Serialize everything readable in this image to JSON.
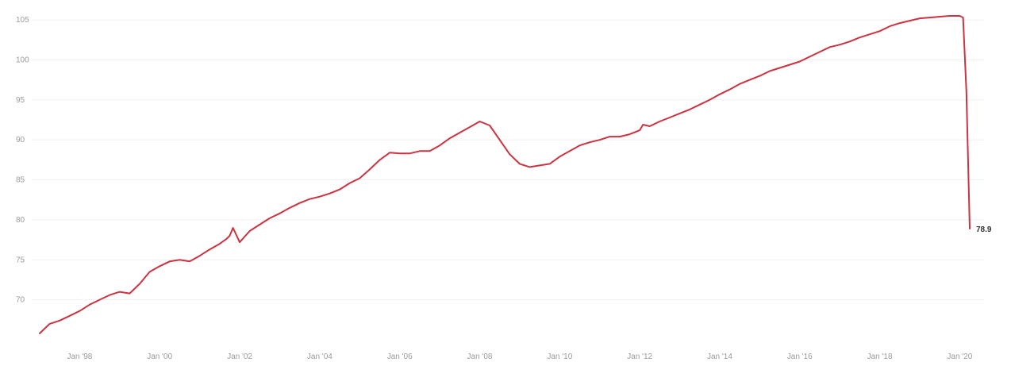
{
  "chart_data": {
    "type": "line",
    "title": "",
    "xlabel": "",
    "ylabel": "",
    "ylim": [
      65,
      106
    ],
    "xlim": [
      "1997-01",
      "2020-04"
    ],
    "grid": true,
    "y_ticks": [
      70,
      75,
      80,
      85,
      90,
      95,
      100,
      105
    ],
    "x_ticks": [
      {
        "x": "1998-01",
        "label": "Jan '98"
      },
      {
        "x": "2000-01",
        "label": "Jan '00"
      },
      {
        "x": "2002-01",
        "label": "Jan '02"
      },
      {
        "x": "2004-01",
        "label": "Jan '04"
      },
      {
        "x": "2006-01",
        "label": "Jan '06"
      },
      {
        "x": "2008-01",
        "label": "Jan '08"
      },
      {
        "x": "2010-01",
        "label": "Jan '10"
      },
      {
        "x": "2012-01",
        "label": "Jan '12"
      },
      {
        "x": "2014-01",
        "label": "Jan '14"
      },
      {
        "x": "2016-01",
        "label": "Jan '16"
      },
      {
        "x": "2018-01",
        "label": "Jan '18"
      },
      {
        "x": "2020-01",
        "label": "Jan '20"
      }
    ],
    "end_label": "78.9",
    "series": [
      {
        "color": "#cc3340",
        "x": [
          "1997-01",
          "1997-04",
          "1997-07",
          "1997-10",
          "1998-01",
          "1998-04",
          "1998-07",
          "1998-10",
          "1999-01",
          "1999-04",
          "1999-07",
          "1999-10",
          "2000-01",
          "2000-04",
          "2000-07",
          "2000-10",
          "2001-01",
          "2001-04",
          "2001-07",
          "2001-09",
          "2001-10",
          "2001-11",
          "2002-01",
          "2002-04",
          "2002-07",
          "2002-10",
          "2003-01",
          "2003-04",
          "2003-07",
          "2003-10",
          "2004-01",
          "2004-04",
          "2004-07",
          "2004-10",
          "2005-01",
          "2005-04",
          "2005-07",
          "2005-10",
          "2006-01",
          "2006-04",
          "2006-07",
          "2006-10",
          "2007-01",
          "2007-04",
          "2007-07",
          "2007-10",
          "2008-01",
          "2008-04",
          "2008-07",
          "2008-10",
          "2009-01",
          "2009-04",
          "2009-07",
          "2009-10",
          "2010-01",
          "2010-04",
          "2010-07",
          "2010-10",
          "2011-01",
          "2011-04",
          "2011-07",
          "2011-10",
          "2012-01",
          "2012-02",
          "2012-04",
          "2012-07",
          "2012-10",
          "2013-01",
          "2013-04",
          "2013-07",
          "2013-10",
          "2014-01",
          "2014-04",
          "2014-07",
          "2014-10",
          "2015-01",
          "2015-04",
          "2015-07",
          "2015-10",
          "2016-01",
          "2016-04",
          "2016-07",
          "2016-10",
          "2017-01",
          "2017-04",
          "2017-07",
          "2017-10",
          "2018-01",
          "2018-04",
          "2018-07",
          "2018-10",
          "2019-01",
          "2019-04",
          "2019-07",
          "2019-10",
          "2020-01",
          "2020-02",
          "2020-03",
          "2020-04"
        ],
        "values": [
          65.8,
          67.0,
          67.4,
          68.0,
          68.6,
          69.4,
          70.0,
          70.6,
          71.0,
          70.8,
          72.0,
          73.5,
          74.2,
          74.8,
          75.0,
          74.8,
          75.5,
          76.3,
          77.0,
          77.6,
          78.0,
          79.0,
          77.2,
          78.6,
          79.4,
          80.2,
          80.8,
          81.5,
          82.1,
          82.6,
          82.9,
          83.3,
          83.8,
          84.6,
          85.2,
          86.3,
          87.5,
          88.4,
          88.3,
          88.3,
          88.6,
          88.6,
          89.3,
          90.2,
          90.9,
          91.6,
          92.3,
          91.8,
          90.0,
          88.2,
          87.0,
          86.6,
          86.8,
          87.0,
          87.9,
          88.6,
          89.3,
          89.7,
          90.0,
          90.4,
          90.4,
          90.7,
          91.2,
          91.9,
          91.7,
          92.3,
          92.8,
          93.3,
          93.8,
          94.4,
          95.0,
          95.7,
          96.3,
          97.0,
          97.5,
          98.0,
          98.6,
          99.0,
          99.4,
          99.8,
          100.4,
          101.0,
          101.6,
          101.9,
          102.3,
          102.8,
          103.2,
          103.6,
          104.2,
          104.6,
          104.9,
          105.2,
          105.3,
          105.4,
          105.5,
          105.5,
          105.3,
          96.0,
          78.9
        ]
      }
    ]
  }
}
